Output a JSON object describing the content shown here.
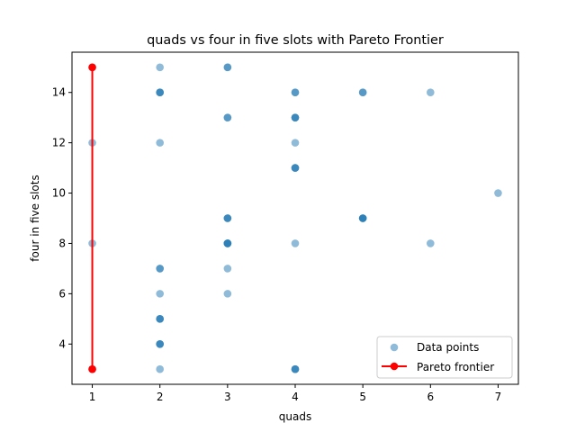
{
  "chart_data": {
    "type": "scatter",
    "title": "quads vs four in five slots with Pareto Frontier",
    "xlabel": "quads",
    "ylabel": "four in five slots",
    "xlim": [
      0.7,
      7.3
    ],
    "ylim": [
      2.4,
      15.6
    ],
    "xticks": [
      1,
      2,
      3,
      4,
      5,
      6,
      7
    ],
    "yticks": [
      4,
      6,
      8,
      10,
      12,
      14
    ],
    "grid": false,
    "legend_position": "bottom-right",
    "series": [
      {
        "name": "Data points",
        "kind": "scatter",
        "color": "#1f77b4",
        "points": [
          [
            1,
            15
          ],
          [
            1,
            12
          ],
          [
            1,
            8
          ],
          [
            1,
            3
          ],
          [
            2,
            15
          ],
          [
            2,
            14
          ],
          [
            2,
            14
          ],
          [
            2,
            14
          ],
          [
            2,
            12
          ],
          [
            2,
            7
          ],
          [
            2,
            7
          ],
          [
            2,
            6
          ],
          [
            2,
            5
          ],
          [
            2,
            5
          ],
          [
            2,
            5
          ],
          [
            2,
            4
          ],
          [
            2,
            4
          ],
          [
            2,
            4
          ],
          [
            2,
            3
          ],
          [
            3,
            15
          ],
          [
            3,
            15
          ],
          [
            3,
            13
          ],
          [
            3,
            13
          ],
          [
            3,
            9
          ],
          [
            3,
            9
          ],
          [
            3,
            9
          ],
          [
            3,
            8
          ],
          [
            3,
            8
          ],
          [
            3,
            8
          ],
          [
            3,
            8
          ],
          [
            3,
            7
          ],
          [
            3,
            6
          ],
          [
            4,
            14
          ],
          [
            4,
            14
          ],
          [
            4,
            13
          ],
          [
            4,
            13
          ],
          [
            4,
            13
          ],
          [
            4,
            12
          ],
          [
            4,
            11
          ],
          [
            4,
            11
          ],
          [
            4,
            11
          ],
          [
            4,
            8
          ],
          [
            4,
            3
          ],
          [
            4,
            3
          ],
          [
            4,
            3
          ],
          [
            5,
            14
          ],
          [
            5,
            14
          ],
          [
            5,
            9
          ],
          [
            5,
            9
          ],
          [
            5,
            9
          ],
          [
            5,
            9
          ],
          [
            6,
            14
          ],
          [
            6,
            8
          ],
          [
            7,
            10
          ]
        ]
      },
      {
        "name": "Pareto frontier",
        "kind": "line",
        "color": "#ff0000",
        "points": [
          [
            1,
            15
          ],
          [
            1,
            3
          ]
        ]
      }
    ]
  }
}
